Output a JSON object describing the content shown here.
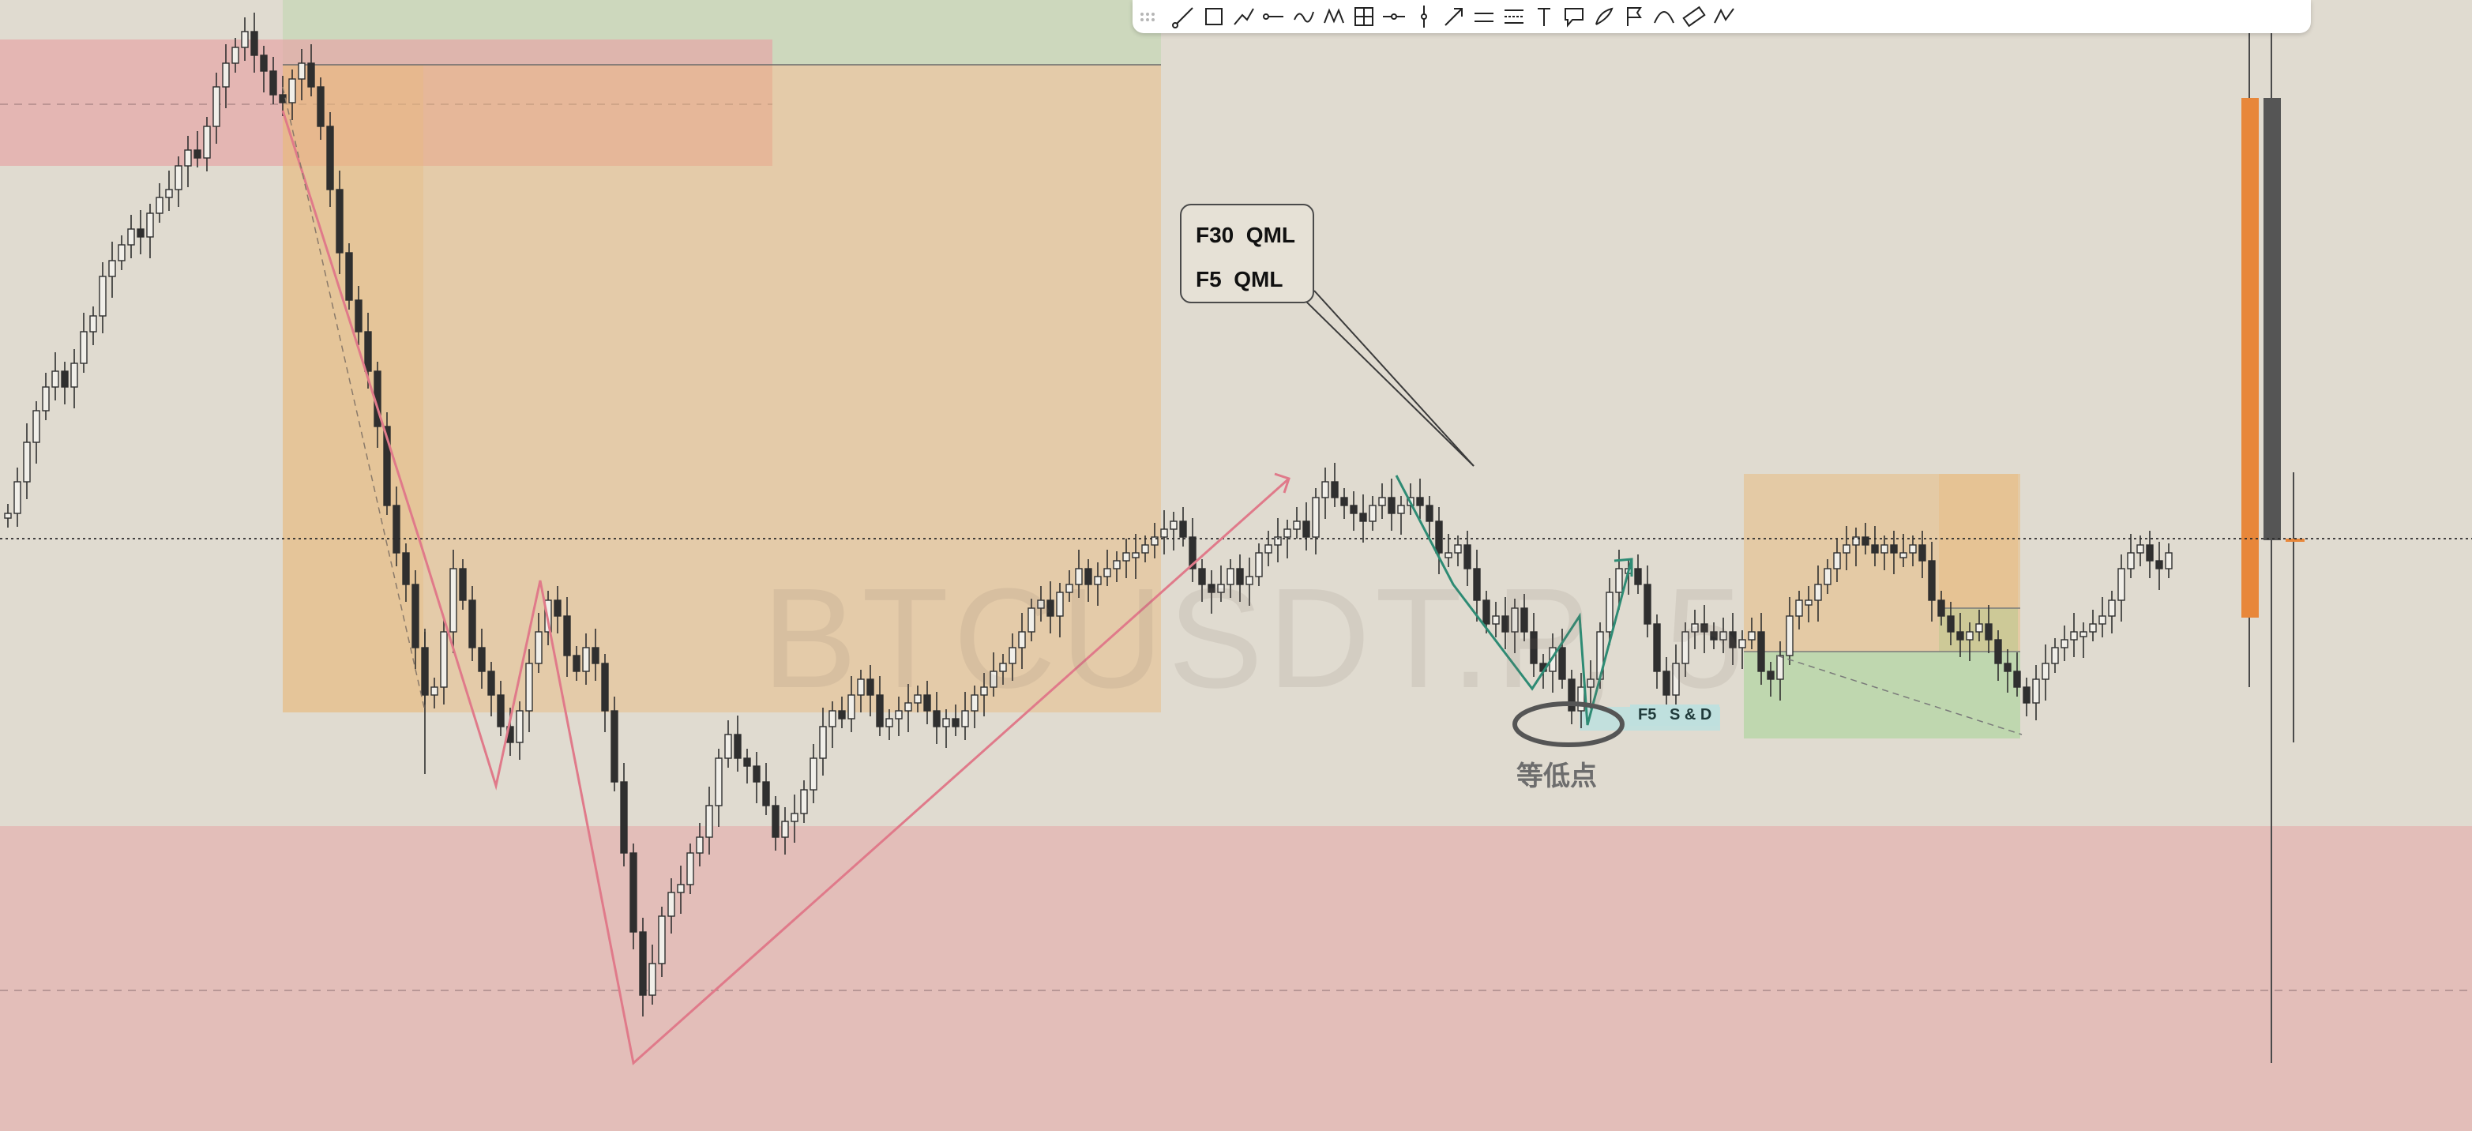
{
  "watermark": "BTCUSDT.P, 5",
  "annotation": {
    "line1": "F30  QML",
    "line2": "F5  QML"
  },
  "sd_label": "F5   S & D",
  "equal_low_label": "等低点",
  "colors": {
    "background": "#e0dbd0",
    "supply_zone": "#e6a6a6",
    "orange_zone": "#e8b97a",
    "demand_zone": "#a8d39a",
    "candle": "#2f2f2f",
    "pink_line": "#e07a8a",
    "teal_line": "#2e8b74",
    "orange_bar": "#e8873a",
    "dark_bar": "#555555"
  },
  "toolbar": {
    "tools": [
      "trend-line-icon",
      "rectangle-icon",
      "path-icon",
      "horizontal-ray-icon",
      "wave-icon",
      "pattern-icon",
      "grid-icon",
      "horizontal-line-icon",
      "vertical-line-icon",
      "arrow-icon",
      "parallel-channel-icon",
      "fib-retracement-icon",
      "text-icon",
      "callout-icon",
      "brush-icon",
      "flag-icon",
      "curve-icon",
      "ruler-icon",
      "xabcd-icon"
    ]
  },
  "chart_data": {
    "type": "candlestick",
    "symbol": "BTCUSDT.P",
    "timeframe": "5",
    "y_axis": "price (no axis labels visible)",
    "candles": [],
    "zones": [
      "upper supply zone (pink)",
      "large orange order block",
      "lower supply zone (pink)",
      "orange/green S&D box right"
    ],
    "lines": [
      "pink zigzag",
      "teal zigzag",
      "dotted current-price line"
    ]
  }
}
